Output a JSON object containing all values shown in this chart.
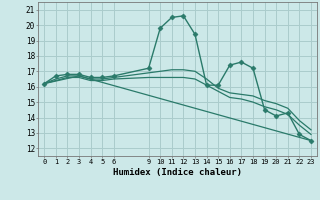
{
  "xlabel": "Humidex (Indice chaleur)",
  "bg_color": "#cce8e8",
  "grid_color": "#aacccc",
  "line_color": "#2a7a6a",
  "xlim": [
    -0.5,
    23.5
  ],
  "ylim": [
    11.5,
    21.5
  ],
  "yticks": [
    12,
    13,
    14,
    15,
    16,
    17,
    18,
    19,
    20,
    21
  ],
  "xtick_vals": [
    0,
    1,
    2,
    3,
    4,
    5,
    6,
    9,
    10,
    11,
    12,
    13,
    14,
    15,
    16,
    17,
    18,
    19,
    20,
    21,
    22,
    23
  ],
  "series": [
    {
      "x": [
        0,
        1,
        2,
        3,
        4,
        5,
        6,
        9,
        10,
        11,
        12,
        13,
        14,
        15,
        16,
        17,
        18,
        19,
        20,
        21,
        22,
        23
      ],
      "y": [
        16.2,
        16.7,
        16.8,
        16.8,
        16.6,
        16.6,
        16.7,
        17.2,
        19.8,
        20.5,
        20.6,
        19.4,
        16.1,
        16.1,
        17.4,
        17.6,
        17.2,
        14.5,
        14.1,
        14.3,
        12.9,
        12.5
      ],
      "marker": "D",
      "markersize": 2.5,
      "linewidth": 1.0
    },
    {
      "x": [
        0,
        1,
        2,
        3,
        4,
        5,
        6,
        9,
        10,
        11,
        12,
        13,
        14,
        15,
        16,
        17,
        18,
        19,
        20,
        21,
        22,
        23
      ],
      "y": [
        16.2,
        16.5,
        16.7,
        16.7,
        16.5,
        16.5,
        16.6,
        16.9,
        17.0,
        17.1,
        17.1,
        17.0,
        16.5,
        15.9,
        15.6,
        15.5,
        15.4,
        15.1,
        14.9,
        14.6,
        13.8,
        13.2
      ],
      "marker": null,
      "markersize": 0,
      "linewidth": 0.9
    },
    {
      "x": [
        0,
        1,
        2,
        3,
        4,
        5,
        6,
        9,
        10,
        11,
        12,
        13,
        14,
        15,
        16,
        17,
        18,
        19,
        20,
        21,
        22,
        23
      ],
      "y": [
        16.2,
        16.4,
        16.6,
        16.6,
        16.4,
        16.4,
        16.5,
        16.6,
        16.6,
        16.6,
        16.6,
        16.5,
        16.1,
        15.7,
        15.3,
        15.2,
        15.0,
        14.7,
        14.5,
        14.2,
        13.5,
        12.9
      ],
      "marker": null,
      "markersize": 0,
      "linewidth": 0.9
    },
    {
      "x": [
        0,
        3,
        23
      ],
      "y": [
        16.2,
        16.7,
        12.5
      ],
      "marker": null,
      "markersize": 0,
      "linewidth": 0.9
    }
  ]
}
